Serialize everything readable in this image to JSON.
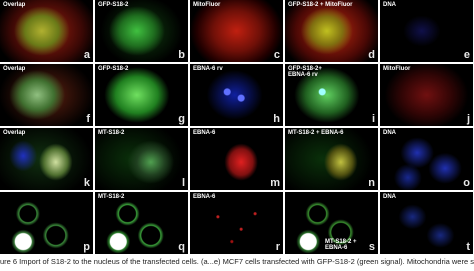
{
  "panels": [
    [
      {
        "label": "Overlap",
        "letter": "a"
      },
      {
        "label": "GFP-S18-2",
        "letter": "b"
      },
      {
        "label": "MitoFluor",
        "letter": "c"
      },
      {
        "label": "GFP-S18-2 + MitoFluor",
        "letter": "d"
      },
      {
        "label": "DNA",
        "letter": "e"
      }
    ],
    [
      {
        "label": "Overlap",
        "letter": "f"
      },
      {
        "label": "GFP-S18-2",
        "letter": "g"
      },
      {
        "label": "EBNA-6 rv",
        "letter": "h"
      },
      {
        "label": "GFP-S18-2+\nEBNA-6 rv",
        "letter": "i"
      },
      {
        "label": "MitoFluor",
        "letter": "j"
      }
    ],
    [
      {
        "label": "Overlap",
        "letter": "k"
      },
      {
        "label": "MT-S18-2",
        "letter": "l"
      },
      {
        "label": "EBNA-6",
        "letter": "m"
      },
      {
        "label": "MT-S18-2 + EBNA-6",
        "letter": "n"
      },
      {
        "label": "DNA",
        "letter": "o"
      }
    ],
    [
      {
        "letter": "p"
      },
      {
        "label": "MT-S18-2",
        "letter": "q"
      },
      {
        "label": "EBNA-6",
        "letter": "r"
      },
      {
        "label": "MT-S18-2 +\nEBNA-6",
        "letter": "s"
      },
      {
        "label": "DNA",
        "letter": "t"
      }
    ]
  ],
  "caption": "ure 6 Import of S18-2 to the nucleus of the transfected cells. (a...e) MCF7 cells transfected with GFP-S18-2 (green signal). Mitochondria were stai"
}
